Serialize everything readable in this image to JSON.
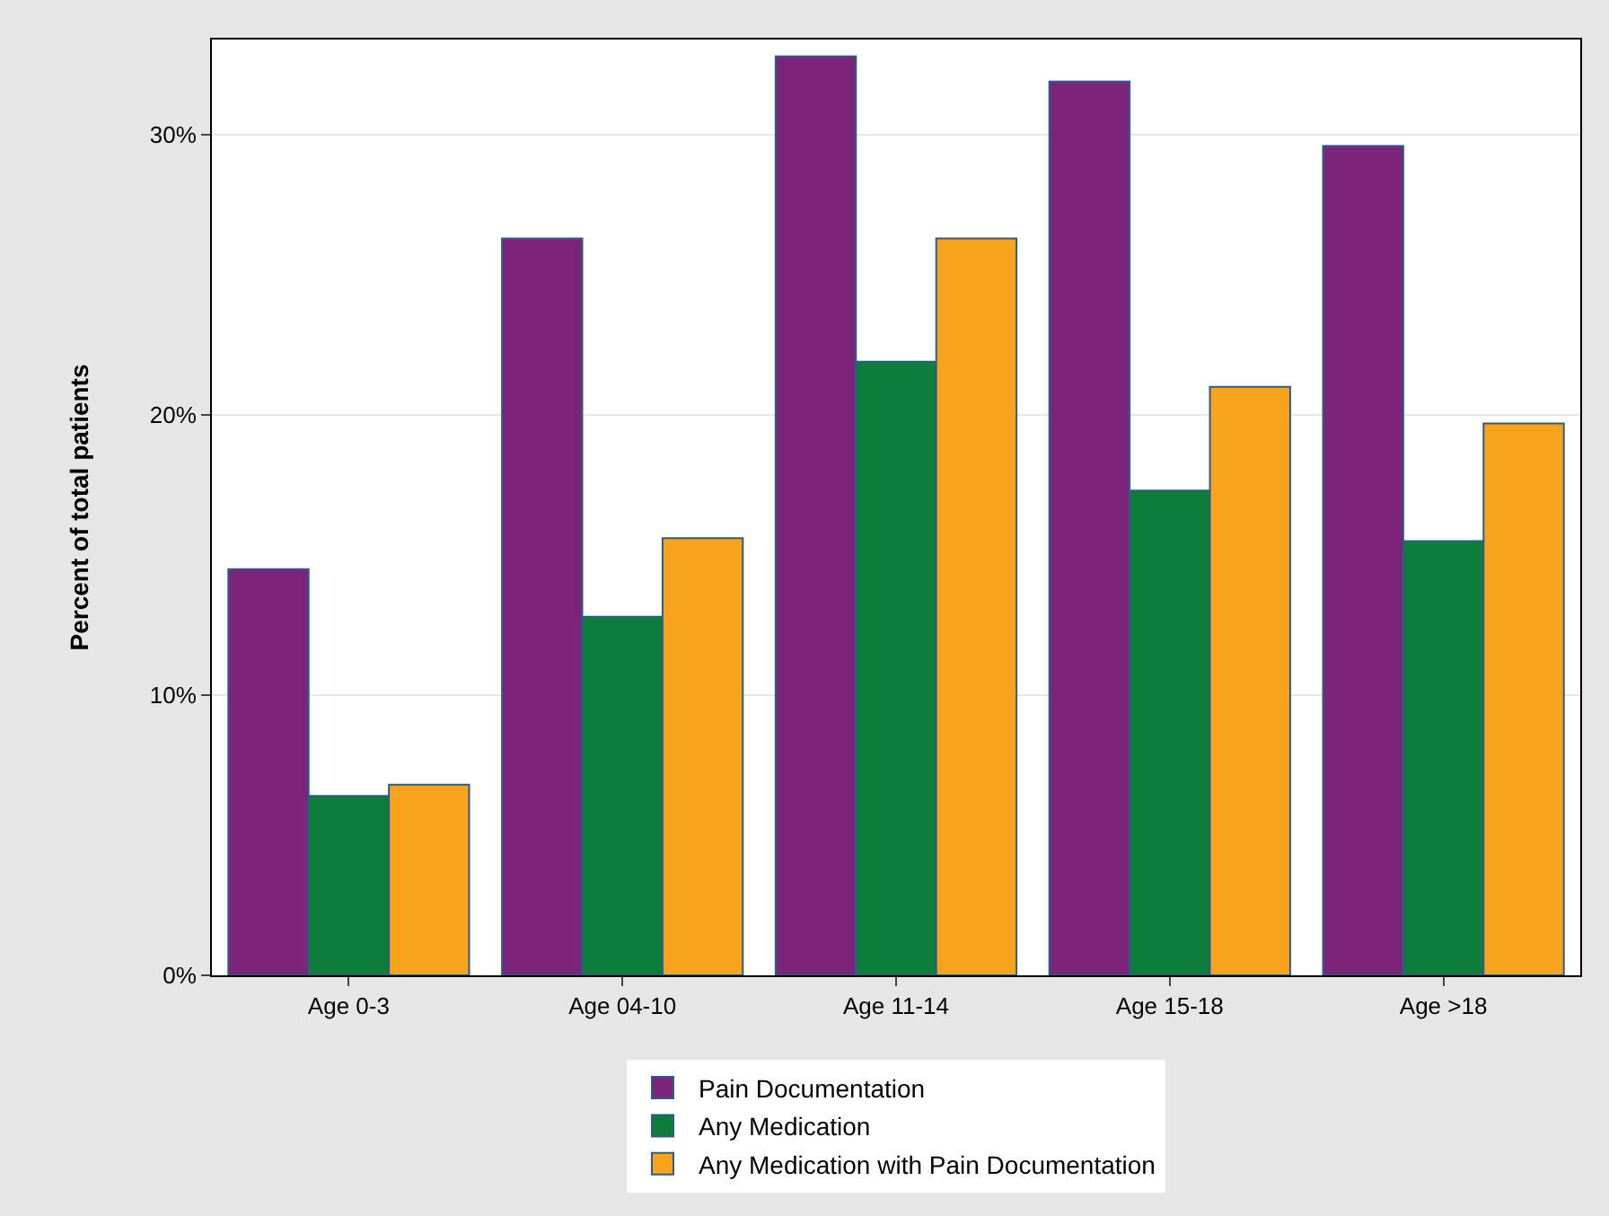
{
  "chart_data": {
    "type": "bar",
    "ylabel": "Percent of total patients",
    "categories": [
      "Age 0-3",
      "Age 04-10",
      "Age 11-14",
      "Age 15-18",
      "Age >18"
    ],
    "series": [
      {
        "name": "Pain Documentation",
        "color": "#7b2479",
        "values": [
          14.5,
          26.3,
          32.8,
          31.9,
          29.6
        ]
      },
      {
        "name": "Any Medication",
        "color": "#0e7d3b",
        "values": [
          6.4,
          12.8,
          21.9,
          17.3,
          15.5
        ]
      },
      {
        "name": "Any Medication with Pain Documentation",
        "color": "#f7a31c",
        "values": [
          6.8,
          15.6,
          26.3,
          21.0,
          19.7
        ]
      }
    ],
    "ylim": [
      0,
      33.4
    ],
    "yticks": [
      {
        "value": 0,
        "label": "0%"
      },
      {
        "value": 10,
        "label": "10%"
      },
      {
        "value": 20,
        "label": "20%"
      },
      {
        "value": 30,
        "label": "30%"
      }
    ],
    "grid": "y",
    "legend": "bottom"
  }
}
